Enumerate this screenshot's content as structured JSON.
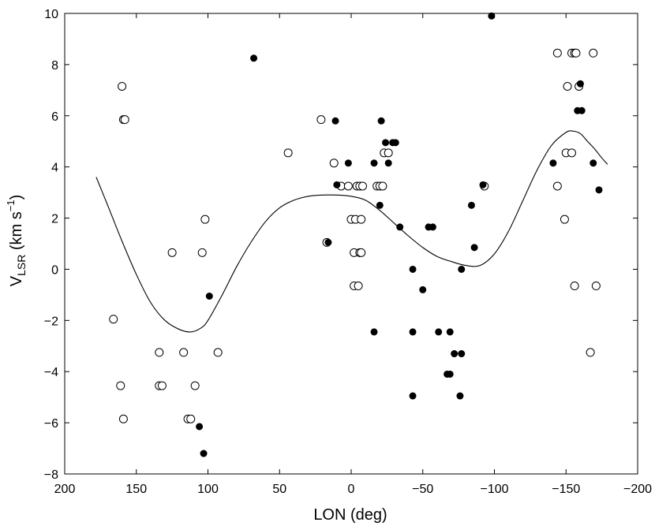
{
  "chart_data": {
    "type": "scatter",
    "title": "",
    "xlabel": "LON (deg)",
    "ylabel": {
      "main": "V",
      "sub": "LSR",
      "unit_pre": " (km s",
      "sup": "−1",
      "unit_post": ")"
    },
    "xlim": [
      200,
      -200
    ],
    "ylim": [
      -8,
      10
    ],
    "x_ticks": [
      200,
      150,
      100,
      50,
      0,
      -50,
      -100,
      -150,
      -200
    ],
    "x_tick_labels": [
      "200",
      "150",
      "100",
      "50",
      "0",
      "−50",
      "−100",
      "−150",
      "−200"
    ],
    "y_ticks": [
      -8,
      -6,
      -4,
      -2,
      0,
      2,
      4,
      6,
      8,
      10
    ],
    "y_tick_labels": [
      "−8",
      "−6",
      "−4",
      "−2",
      "0",
      "2",
      "4",
      "6",
      "8",
      "10"
    ],
    "grid": false,
    "series": [
      {
        "name": "open",
        "marker": "open-circle",
        "points": [
          [
            160,
            7.15
          ],
          [
            159,
            5.85
          ],
          [
            158,
            5.85
          ],
          [
            166,
            -1.95
          ],
          [
            161,
            -4.55
          ],
          [
            159,
            -5.85
          ],
          [
            134,
            -3.25
          ],
          [
            134,
            -4.55
          ],
          [
            132,
            -4.55
          ],
          [
            125,
            0.65
          ],
          [
            117,
            -3.25
          ],
          [
            114,
            -5.85
          ],
          [
            112,
            -5.85
          ],
          [
            109,
            -4.55
          ],
          [
            104,
            0.65
          ],
          [
            102,
            1.95
          ],
          [
            93,
            -3.25
          ],
          [
            44,
            4.55
          ],
          [
            21,
            5.85
          ],
          [
            17,
            1.05
          ],
          [
            12,
            4.15
          ],
          [
            7,
            3.25
          ],
          [
            2,
            3.25
          ],
          [
            0,
            1.95
          ],
          [
            -2,
            0.65
          ],
          [
            -2,
            -0.65
          ],
          [
            -3,
            1.95
          ],
          [
            -4,
            3.25
          ],
          [
            -5,
            -0.65
          ],
          [
            -6,
            0.65
          ],
          [
            -6,
            3.25
          ],
          [
            -7,
            1.95
          ],
          [
            -7,
            0.65
          ],
          [
            -8,
            3.25
          ],
          [
            -18,
            3.25
          ],
          [
            -20,
            3.25
          ],
          [
            -22,
            3.25
          ],
          [
            -23,
            4.55
          ],
          [
            -26,
            4.55
          ],
          [
            -93,
            3.25
          ],
          [
            -144,
            8.45
          ],
          [
            -144,
            3.25
          ],
          [
            -149,
            1.95
          ],
          [
            -150,
            4.55
          ],
          [
            -151,
            7.15
          ],
          [
            -154,
            8.45
          ],
          [
            -154,
            4.55
          ],
          [
            -156,
            8.45
          ],
          [
            -156,
            -0.65
          ],
          [
            -157,
            8.45
          ],
          [
            -159,
            7.15
          ],
          [
            -167,
            -3.25
          ],
          [
            -169,
            8.45
          ],
          [
            -171,
            -0.65
          ]
        ]
      },
      {
        "name": "filled",
        "marker": "filled-circle",
        "points": [
          [
            68,
            8.25
          ],
          [
            99,
            -1.05
          ],
          [
            106,
            -6.15
          ],
          [
            103,
            -7.2
          ],
          [
            16,
            1.05
          ],
          [
            11,
            5.8
          ],
          [
            10,
            3.3
          ],
          [
            2,
            4.15
          ],
          [
            -16,
            4.15
          ],
          [
            -16,
            -2.45
          ],
          [
            -20,
            2.5
          ],
          [
            -21,
            5.8
          ],
          [
            -24,
            4.95
          ],
          [
            -26,
            4.15
          ],
          [
            -29,
            4.95
          ],
          [
            -31,
            4.95
          ],
          [
            -34,
            1.65
          ],
          [
            -43,
            0
          ],
          [
            -43,
            -2.45
          ],
          [
            -43,
            -4.95
          ],
          [
            -50,
            -0.8
          ],
          [
            -54,
            1.65
          ],
          [
            -57,
            1.65
          ],
          [
            -61,
            -2.45
          ],
          [
            -67,
            -4.1
          ],
          [
            -69,
            -4.1
          ],
          [
            -69,
            -2.45
          ],
          [
            -72,
            -3.3
          ],
          [
            -76,
            -4.95
          ],
          [
            -77,
            0
          ],
          [
            -77,
            -3.3
          ],
          [
            -84,
            2.5
          ],
          [
            -86,
            0.85
          ],
          [
            -92,
            3.3
          ],
          [
            -98,
            9.9
          ],
          [
            -141,
            4.15
          ],
          [
            -158,
            6.2
          ],
          [
            -160,
            7.25
          ],
          [
            -161,
            6.2
          ],
          [
            -169,
            4.15
          ],
          [
            -173,
            3.1
          ]
        ]
      }
    ],
    "fit_curve": {
      "name": "fit",
      "x": [
        178,
        170,
        160,
        150,
        140,
        130,
        120,
        112,
        105,
        100,
        90,
        80,
        70,
        60,
        50,
        40,
        30,
        20,
        10,
        0,
        -10,
        -20,
        -30,
        -40,
        -50,
        -60,
        -70,
        -80,
        -90,
        -100,
        -110,
        -120,
        -130,
        -140,
        -150,
        -155,
        -160,
        -165,
        -170,
        -175,
        -179
      ],
      "y": [
        3.6,
        2.5,
        1.1,
        -0.2,
        -1.3,
        -2.0,
        -2.35,
        -2.45,
        -2.3,
        -2.0,
        -1.0,
        0.1,
        1.05,
        1.85,
        2.4,
        2.7,
        2.85,
        2.9,
        2.9,
        2.85,
        2.7,
        2.3,
        1.8,
        1.3,
        0.85,
        0.5,
        0.3,
        0.15,
        0.15,
        0.6,
        1.5,
        2.7,
        3.9,
        4.85,
        5.35,
        5.4,
        5.3,
        5.0,
        4.7,
        4.35,
        4.1
      ]
    }
  }
}
